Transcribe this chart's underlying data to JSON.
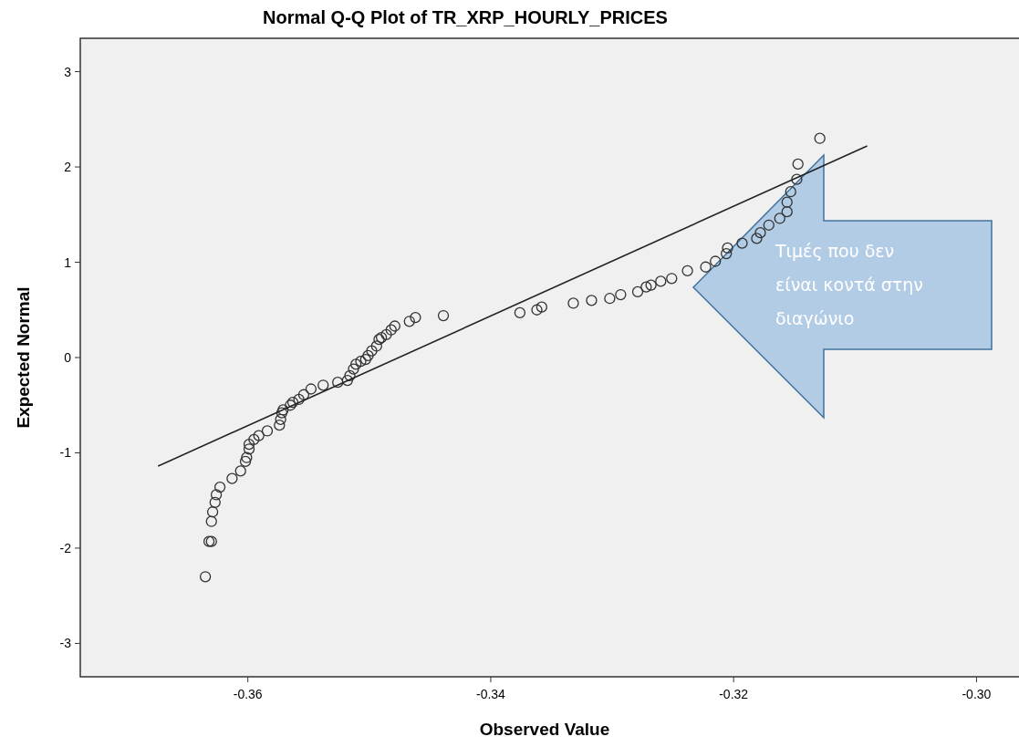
{
  "chart_data": {
    "type": "scatter",
    "title": "Normal Q-Q Plot of TR_XRP_HOURLY_PRICES",
    "xlabel": "Observed Value",
    "ylabel": "Expected Normal",
    "xlim": [
      -0.3738,
      -0.2965
    ],
    "ylim": [
      -3.35,
      3.35
    ],
    "xticks": [
      {
        "value": -0.36,
        "label": "-0.36"
      },
      {
        "value": -0.34,
        "label": "-0.34"
      },
      {
        "value": -0.32,
        "label": "-0.32"
      },
      {
        "value": -0.3,
        "label": "-0.30"
      }
    ],
    "yticks": [
      -3,
      -2,
      -1,
      0,
      1,
      2,
      3
    ],
    "grid": false,
    "series": [
      {
        "color": "#333333",
        "marker": "circle",
        "x": [
          -0.3635,
          -0.3632,
          -0.363,
          -0.363,
          -0.3629,
          -0.3627,
          -0.3626,
          -0.3623,
          -0.3613,
          -0.3606,
          -0.3602,
          -0.3601,
          -0.3599,
          -0.3599,
          -0.3595,
          -0.3591,
          -0.3584,
          -0.3574,
          -0.3573,
          -0.3572,
          -0.3571,
          -0.3565,
          -0.3563,
          -0.3558,
          -0.3554,
          -0.3548,
          -0.3538,
          -0.3526,
          -0.3518,
          -0.3516,
          -0.3513,
          -0.3511,
          -0.3507,
          -0.3503,
          -0.3501,
          -0.3498,
          -0.3494,
          -0.3492,
          -0.349,
          -0.3486,
          -0.3482,
          -0.3479,
          -0.3467,
          -0.3462,
          -0.3439,
          -0.3376,
          -0.3362,
          -0.3358,
          -0.3332,
          -0.3317,
          -0.3302,
          -0.3293,
          -0.3279,
          -0.3272,
          -0.3268,
          -0.326,
          -0.3251,
          -0.3238,
          -0.3223,
          -0.3215,
          -0.3206,
          -0.3205,
          -0.3193,
          -0.3181,
          -0.3178,
          -0.3171,
          -0.3162,
          -0.3156,
          -0.3156,
          -0.3153,
          -0.3148,
          -0.3147,
          -0.3129
        ],
        "values": [
          -2.3,
          -1.93,
          -1.93,
          -1.72,
          -1.62,
          -1.52,
          -1.44,
          -1.36,
          -1.27,
          -1.19,
          -1.09,
          -1.05,
          -0.96,
          -0.91,
          -0.86,
          -0.82,
          -0.77,
          -0.71,
          -0.65,
          -0.58,
          -0.55,
          -0.5,
          -0.47,
          -0.44,
          -0.39,
          -0.33,
          -0.29,
          -0.26,
          -0.24,
          -0.19,
          -0.12,
          -0.07,
          -0.04,
          -0.02,
          0.02,
          0.07,
          0.12,
          0.19,
          0.21,
          0.24,
          0.29,
          0.33,
          0.38,
          0.42,
          0.44,
          0.47,
          0.5,
          0.53,
          0.57,
          0.6,
          0.62,
          0.66,
          0.69,
          0.74,
          0.76,
          0.8,
          0.83,
          0.91,
          0.95,
          1.01,
          1.09,
          1.15,
          1.2,
          1.25,
          1.31,
          1.39,
          1.46,
          1.53,
          1.63,
          1.74,
          1.87,
          2.03,
          2.3
        ]
      },
      {
        "type": "line",
        "color": "#222222",
        "x": [
          -0.3674,
          -0.309
        ],
        "values": [
          -1.14,
          2.22
        ]
      }
    ],
    "annotations": [
      "Τιμές που δεν είναι κοντά στην διαγώνιο"
    ]
  }
}
